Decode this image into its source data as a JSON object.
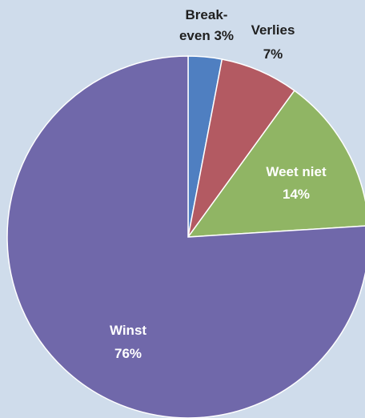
{
  "chart_data": {
    "type": "pie",
    "title": "",
    "start_angle_deg": 0,
    "direction": "clockwise",
    "slices": [
      {
        "label_lines": [
          "Break-",
          "even 3%"
        ],
        "category": "Break-even",
        "value": 3,
        "color": "#4f7fc1",
        "label_color": "#1f1f1f",
        "label_position": "outside"
      },
      {
        "label_lines": [
          "Verlies",
          "7%"
        ],
        "category": "Verlies",
        "value": 7,
        "color": "#b35a62",
        "label_color": "#1f1f1f",
        "label_position": "outside"
      },
      {
        "label_lines": [
          "Weet niet",
          "14%"
        ],
        "category": "Weet niet",
        "value": 14,
        "color": "#90b564",
        "label_color": "#ffffff",
        "label_position": "inside"
      },
      {
        "label_lines": [
          "Winst",
          "76%"
        ],
        "category": "Winst",
        "value": 76,
        "color": "#7068aa",
        "label_color": "#ffffff",
        "label_position": "inside"
      }
    ]
  }
}
